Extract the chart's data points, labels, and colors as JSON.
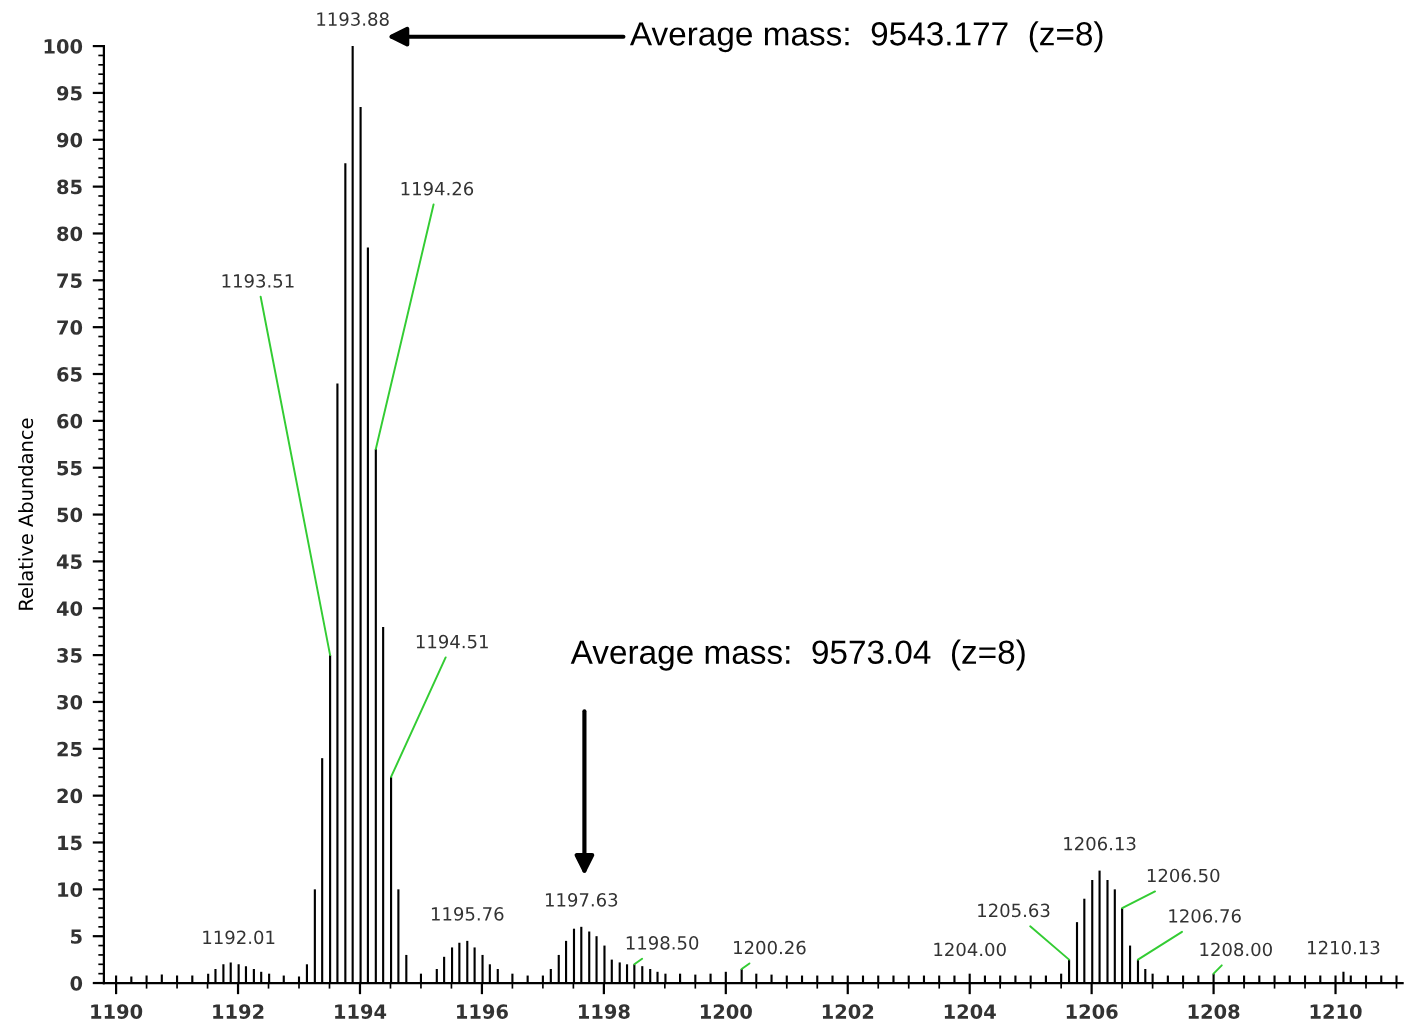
{
  "chart_data": {
    "type": "bar",
    "ylabel": "Relative Abundance",
    "color": "#000000",
    "x": [
      1190.0,
      1190.25,
      1190.5,
      1190.75,
      1191.0,
      1191.25,
      1191.51,
      1191.63,
      1191.76,
      1191.88,
      1192.01,
      1192.13,
      1192.26,
      1192.38,
      1192.51,
      1192.75,
      1193.0,
      1193.13,
      1193.26,
      1193.38,
      1193.51,
      1193.63,
      1193.76,
      1193.88,
      1194.01,
      1194.13,
      1194.26,
      1194.38,
      1194.51,
      1194.63,
      1194.76,
      1195.0,
      1195.26,
      1195.38,
      1195.51,
      1195.63,
      1195.76,
      1195.88,
      1196.01,
      1196.13,
      1196.26,
      1196.5,
      1196.75,
      1197.0,
      1197.13,
      1197.26,
      1197.38,
      1197.51,
      1197.63,
      1197.76,
      1197.88,
      1198.01,
      1198.13,
      1198.26,
      1198.38,
      1198.5,
      1198.63,
      1198.76,
      1198.88,
      1199.01,
      1199.25,
      1199.5,
      1199.75,
      1200.0,
      1200.26,
      1200.5,
      1200.75,
      1201.0,
      1201.25,
      1201.5,
      1201.75,
      1202.0,
      1202.25,
      1202.5,
      1202.75,
      1203.0,
      1203.25,
      1203.5,
      1203.75,
      1204.0,
      1204.25,
      1204.5,
      1204.75,
      1205.0,
      1205.25,
      1205.5,
      1205.63,
      1205.76,
      1205.88,
      1206.01,
      1206.13,
      1206.26,
      1206.38,
      1206.5,
      1206.63,
      1206.76,
      1206.88,
      1207.0,
      1207.25,
      1207.5,
      1207.75,
      1208.0,
      1208.25,
      1208.5,
      1208.75,
      1209.0,
      1209.25,
      1209.5,
      1209.75,
      1210.0,
      1210.13,
      1210.25,
      1210.5,
      1210.75,
      1211.0
    ],
    "values": [
      0.8,
      0.7,
      0.8,
      0.9,
      0.8,
      0.8,
      1,
      1.5,
      2,
      2.2,
      2,
      1.8,
      1.5,
      1.2,
      1,
      0.8,
      0.7,
      2,
      10,
      24,
      35,
      64,
      87.5,
      100,
      93.5,
      78.5,
      57,
      38,
      22,
      10,
      3,
      1,
      1.5,
      2.8,
      3.8,
      4.3,
      4.5,
      3.8,
      3,
      2,
      1.5,
      1,
      0.8,
      0.8,
      1.5,
      3,
      4.5,
      5.8,
      6,
      5.5,
      5,
      4,
      2.5,
      2.2,
      2,
      2,
      1.8,
      1.5,
      1.2,
      1,
      1,
      0.9,
      1,
      1.2,
      1.5,
      1,
      0.9,
      0.8,
      0.8,
      0.8,
      0.8,
      0.8,
      0.8,
      0.8,
      0.8,
      0.8,
      0.8,
      0.8,
      0.8,
      1,
      0.8,
      0.8,
      0.8,
      0.8,
      0.8,
      1,
      2.5,
      6.5,
      9,
      11,
      12,
      11,
      10,
      8,
      4,
      2.5,
      1.5,
      1,
      0.8,
      0.8,
      0.8,
      1,
      0.8,
      0.8,
      0.8,
      0.8,
      0.8,
      0.8,
      0.8,
      0.8,
      1.2,
      0.8,
      0.8,
      0.8,
      0.8
    ],
    "xlim": [
      1189.8,
      1211.1
    ],
    "ylim": [
      0,
      100
    ],
    "xticks": [
      1190,
      1192,
      1194,
      1196,
      1198,
      1200,
      1202,
      1204,
      1206,
      1208,
      1210
    ],
    "yticks": [
      0,
      5,
      10,
      15,
      20,
      25,
      30,
      35,
      40,
      45,
      50,
      55,
      60,
      65,
      70,
      75,
      80,
      85,
      90,
      95,
      100
    ],
    "grid": false,
    "legend": false,
    "annotations": [
      {
        "text": "1193.88",
        "x": 1193.88,
        "y": 100
      },
      {
        "text": "1194.26",
        "x": 1194.26,
        "y": 57
      },
      {
        "text": "1193.51",
        "x": 1193.51,
        "y": 35
      },
      {
        "text": "1194.51",
        "x": 1194.51,
        "y": 22
      },
      {
        "text": "1192.01",
        "x": 1192.01,
        "y": 2
      },
      {
        "text": "1195.76",
        "x": 1195.76,
        "y": 4.5
      },
      {
        "text": "1197.63",
        "x": 1197.63,
        "y": 6
      },
      {
        "text": "1198.50",
        "x": 1198.5,
        "y": 2
      },
      {
        "text": "1200.26",
        "x": 1200.26,
        "y": 1.5
      },
      {
        "text": "1204.00",
        "x": 1204.0,
        "y": 1
      },
      {
        "text": "1205.63",
        "x": 1205.63,
        "y": 2.5
      },
      {
        "text": "1206.13",
        "x": 1206.13,
        "y": 12
      },
      {
        "text": "1206.50",
        "x": 1206.5,
        "y": 8
      },
      {
        "text": "1206.76",
        "x": 1206.76,
        "y": 2.5
      },
      {
        "text": "1208.00",
        "x": 1208.0,
        "y": 1
      },
      {
        "text": "1210.13",
        "x": 1210.13,
        "y": 1.2
      },
      "Average mass:  9543.177  (z=8)",
      "Average mass:  9573.04  (z=8)"
    ]
  }
}
